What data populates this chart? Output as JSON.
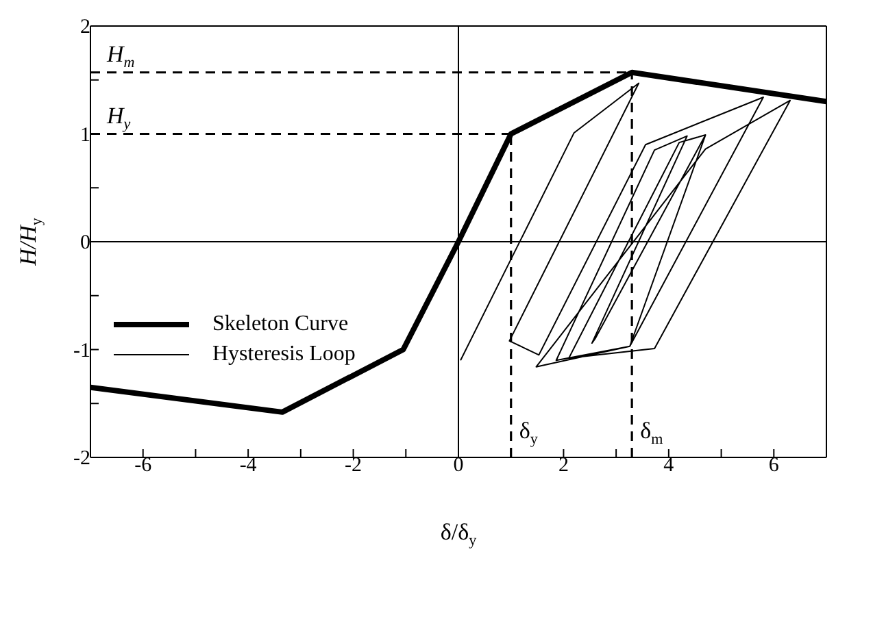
{
  "chart_data": {
    "type": "line",
    "xlabel": "δ/δ$_{y}$",
    "ylabel": "H/H$_{y}$",
    "xlim": [
      -7,
      7
    ],
    "xticks": [
      {
        "value": -7,
        "label": null
      },
      -6,
      {
        "value": -5,
        "label": null
      },
      -4,
      {
        "value": -3,
        "label": null
      },
      -2,
      {
        "value": -1,
        "label": null
      },
      0,
      {
        "value": 1,
        "label": null
      },
      2,
      {
        "value": 3,
        "label": null
      },
      4,
      {
        "value": 5,
        "label": null
      },
      6,
      {
        "value": 7,
        "label": null
      }
    ],
    "ylim": [
      -2,
      2
    ],
    "yticks": [
      -2,
      {
        "value": -1.5,
        "label": null
      },
      -1,
      {
        "value": -0.5,
        "label": null
      },
      0,
      {
        "value": 0.5,
        "label": null
      },
      1,
      {
        "value": 1.5,
        "label": null
      },
      2
    ],
    "legend": "left",
    "marker": "none",
    "ref_lines": [
      {
        "axis": "y",
        "value": 1,
        "label": "H$_{y}$",
        "line_style": "dashed"
      },
      {
        "axis": "y",
        "value": 1.57,
        "label": "H$_{m}$",
        "line_style": "dashed"
      },
      {
        "axis": "x",
        "value": 1,
        "label": "δ$_{y}$",
        "line_style": "dashed"
      },
      {
        "axis": "x",
        "value": 3.3,
        "label": "δ$_{m}$",
        "line_style": "dashed"
      },
      {
        "axis": "x",
        "value": 0,
        "line_style": "solid"
      },
      {
        "axis": "y",
        "value": 0,
        "line_style": "solid"
      }
    ],
    "series": [
      {
        "name": "Skeleton Curve",
        "color": "#000000",
        "x": [
          -7,
          -3.35,
          -1.05,
          0,
          1,
          3.3,
          7
        ],
        "values": [
          -1.35,
          -1.58,
          -1,
          0,
          1,
          1.57,
          1.3
        ]
      },
      {
        "name": "Hysteresis Loop",
        "color": "#000000",
        "x": [
          0.04,
          2.2,
          3.43,
          0.97,
          1.53,
          3.56,
          5.8,
          3.26,
          1.86,
          3.73,
          4.35,
          2.54,
          2.6,
          4.7,
          3.26,
          1.48,
          4.7,
          6.31,
          3.73,
          2.1,
          4.2,
          4.7
        ],
        "values": [
          -1.1,
          1.01,
          1.47,
          -0.92,
          -1.05,
          0.9,
          1.34,
          -0.97,
          -1.1,
          0.85,
          0.98,
          -0.94,
          -0.9,
          0.99,
          -0.97,
          -1.16,
          0.86,
          1.31,
          -0.99,
          -1.08,
          0.92,
          0.99
        ]
      }
    ]
  }
}
